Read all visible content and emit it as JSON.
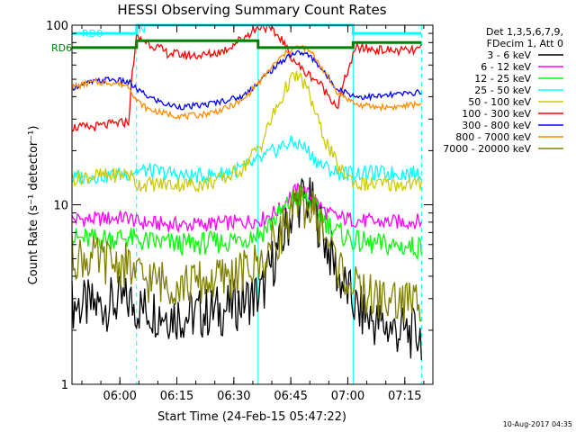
{
  "chart_data": {
    "type": "line",
    "title": "HESSI Observing Summary Count Rates",
    "xlabel": "Start Time (24-Feb-15 05:47:22)",
    "ylabel": "Count Rate (s⁻¹ detector⁻¹)",
    "x_unit": "minutes",
    "xlim": [
      0,
      95
    ],
    "ylim": [
      1,
      100
    ],
    "y_scale": "log",
    "x_ticks": [
      {
        "value": 12.6,
        "label": "06:00"
      },
      {
        "value": 27.6,
        "label": "06:15"
      },
      {
        "value": 42.6,
        "label": "06:30"
      },
      {
        "value": 57.6,
        "label": "06:45"
      },
      {
        "value": 72.6,
        "label": "07:00"
      },
      {
        "value": 87.6,
        "label": "07:15"
      }
    ],
    "y_ticks": [
      {
        "value": 1,
        "label": "1"
      },
      {
        "value": 10,
        "label": "10"
      },
      {
        "value": 100,
        "label": "100"
      }
    ],
    "legend": {
      "placement": "right",
      "header": [
        "Det 1,3,5,6,7,9,",
        "FDecim 1, Att 0"
      ]
    },
    "series": [
      {
        "name": "3 - 6 keV",
        "color": "#000000",
        "x": [
          0,
          5,
          10,
          15,
          17,
          20,
          25,
          30,
          35,
          40,
          45,
          50,
          55,
          57,
          59,
          61,
          63,
          65,
          67,
          70,
          75,
          80,
          85,
          90,
          92
        ],
        "y": [
          2.8,
          2.7,
          2.8,
          2.9,
          2.7,
          2.6,
          2.5,
          2.4,
          2.5,
          2.6,
          2.9,
          3.2,
          6,
          8,
          10,
          11,
          10,
          8,
          6,
          4,
          2.6,
          2.2,
          2.0,
          1.9,
          1.9
        ]
      },
      {
        "name": "6 - 12 keV",
        "color": "#ff00ff",
        "x": [
          0,
          5,
          10,
          15,
          17,
          20,
          25,
          30,
          35,
          40,
          45,
          50,
          55,
          57,
          59,
          61,
          63,
          65,
          67,
          70,
          75,
          80,
          85,
          90,
          92
        ],
        "y": [
          8.3,
          8.3,
          8.4,
          8.5,
          8.0,
          7.9,
          7.8,
          7.7,
          7.8,
          7.9,
          8.0,
          8.3,
          9.5,
          11,
          12,
          12,
          11,
          10,
          9,
          8.5,
          8.2,
          8.0,
          8.0,
          8.1,
          8.1
        ]
      },
      {
        "name": "12 - 25 keV",
        "color": "#00ff00",
        "x": [
          0,
          5,
          10,
          15,
          17,
          20,
          25,
          30,
          35,
          40,
          45,
          50,
          55,
          57,
          59,
          61,
          63,
          65,
          67,
          70,
          75,
          80,
          85,
          90,
          92
        ],
        "y": [
          6.5,
          6.4,
          6.5,
          6.6,
          6.3,
          6.2,
          6.1,
          6.0,
          6.1,
          6.2,
          6.5,
          7.0,
          9,
          10,
          11,
          11,
          10,
          9,
          8,
          7,
          6.2,
          6.0,
          5.9,
          5.8,
          5.8
        ]
      },
      {
        "name": "25 - 50 keV",
        "color": "#00ffff",
        "x": [
          0,
          5,
          10,
          15,
          17,
          20,
          25,
          30,
          35,
          40,
          45,
          50,
          55,
          57,
          59,
          61,
          63,
          65,
          67,
          70,
          75,
          80,
          85,
          90,
          92
        ],
        "y": [
          14,
          14.5,
          14.5,
          15,
          15.5,
          15.5,
          15,
          14.5,
          14.5,
          15,
          16,
          18,
          21,
          22,
          22,
          21,
          19,
          17,
          16,
          15,
          15,
          15,
          15,
          15,
          15
        ]
      },
      {
        "name": "50 - 100 keV",
        "color": "#cccc00",
        "x": [
          0,
          5,
          10,
          15,
          17,
          20,
          25,
          30,
          35,
          40,
          45,
          50,
          55,
          57,
          59,
          61,
          63,
          65,
          67,
          70,
          75,
          80,
          85,
          90,
          92
        ],
        "y": [
          14,
          14.5,
          14.5,
          15,
          13,
          13,
          13,
          13,
          13,
          14,
          16,
          22,
          38,
          48,
          52,
          48,
          38,
          28,
          22,
          16,
          13,
          13,
          13,
          13,
          13
        ]
      },
      {
        "name": "100 - 300 keV",
        "color": "#ff0000",
        "x": [
          0,
          5,
          10,
          15,
          17,
          20,
          25,
          30,
          35,
          40,
          45,
          50,
          55,
          57,
          59,
          61,
          63,
          65,
          67,
          70,
          75,
          80,
          85,
          90,
          92
        ],
        "y": [
          27,
          27,
          28,
          29,
          85,
          80,
          70,
          68,
          68,
          72,
          85,
          100,
          85,
          70,
          62,
          55,
          52,
          48,
          42,
          35,
          75,
          73,
          72,
          72,
          74
        ]
      },
      {
        "name": "300 - 800 keV",
        "color": "#0000ff",
        "x": [
          0,
          5,
          10,
          15,
          17,
          20,
          25,
          30,
          35,
          40,
          45,
          50,
          55,
          57,
          59,
          61,
          63,
          65,
          67,
          70,
          75,
          80,
          85,
          90,
          92
        ],
        "y": [
          45,
          48,
          50,
          48,
          44,
          40,
          36,
          35,
          36,
          38,
          40,
          50,
          62,
          68,
          70,
          70,
          66,
          60,
          52,
          44,
          40,
          40,
          41,
          42,
          43
        ]
      },
      {
        "name": "800 - 7000 keV",
        "color": "#ff8c00",
        "x": [
          0,
          5,
          10,
          15,
          17,
          20,
          25,
          30,
          35,
          40,
          45,
          50,
          55,
          57,
          59,
          61,
          63,
          65,
          67,
          70,
          75,
          80,
          85,
          90,
          92
        ],
        "y": [
          45,
          48,
          48,
          46,
          38,
          34,
          32,
          31,
          32,
          34,
          38,
          50,
          66,
          72,
          75,
          75,
          70,
          62,
          52,
          42,
          36,
          35,
          35,
          36,
          37
        ]
      },
      {
        "name": "7000 - 20000 keV",
        "color": "#808000",
        "x": [
          0,
          5,
          10,
          15,
          17,
          20,
          25,
          30,
          35,
          40,
          45,
          50,
          55,
          57,
          59,
          61,
          63,
          65,
          67,
          70,
          75,
          80,
          85,
          90,
          92
        ],
        "y": [
          5.2,
          5.0,
          4.8,
          4.5,
          4.0,
          3.8,
          3.7,
          3.6,
          3.7,
          3.9,
          4.2,
          4.8,
          7,
          8.5,
          9.5,
          10,
          9.5,
          8.2,
          6.5,
          4.5,
          3.3,
          3.0,
          2.9,
          2.9,
          2.9
        ]
      }
    ],
    "overlays": [
      {
        "name": "RD6",
        "color": "#008000",
        "x": [
          0,
          17,
          17,
          49,
          49,
          74,
          74,
          92
        ],
        "y": [
          75,
          75,
          82,
          82,
          75,
          75,
          80,
          80
        ]
      },
      {
        "name": "RD0",
        "color": "#00ffff",
        "x": [
          0,
          17,
          17,
          74,
          74,
          92
        ],
        "y": [
          90,
          90,
          100,
          100,
          90,
          90
        ]
      }
    ],
    "markers": [
      {
        "x": 17,
        "y": 95,
        "label": "N"
      }
    ],
    "vertical_lines": [
      {
        "x": 0,
        "style": "dashed",
        "color": "#00ffff"
      },
      {
        "x": 17,
        "style": "dashed",
        "color": "#00ffff"
      },
      {
        "x": 49,
        "style": "solid",
        "color": "#00ffff"
      },
      {
        "x": 74,
        "style": "solid",
        "color": "#00ffff"
      },
      {
        "x": 92,
        "style": "dashed",
        "color": "#00ffff"
      }
    ]
  },
  "timestamp": "10-Aug-2017 04:35"
}
